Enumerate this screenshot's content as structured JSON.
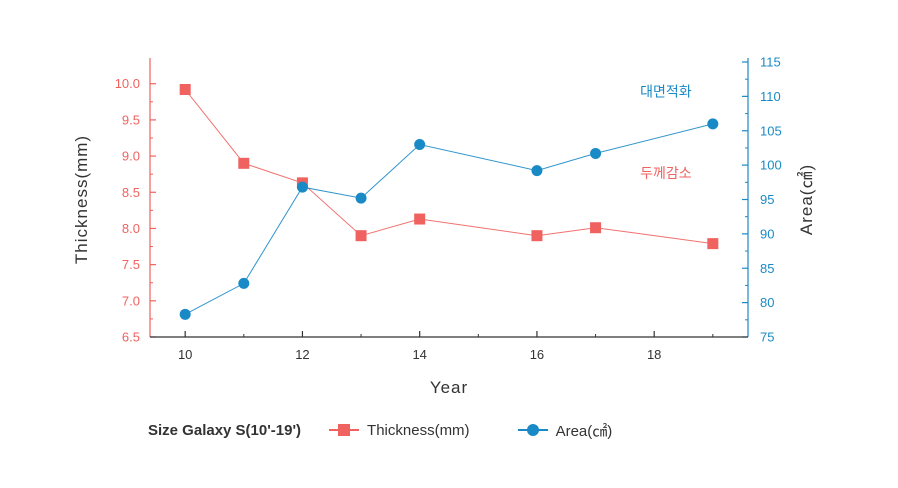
{
  "chart_data": {
    "type": "line",
    "x": [
      10,
      11,
      12,
      13,
      14,
      16,
      17,
      19
    ],
    "xlabel": "Year",
    "xlim": [
      9.4,
      19.6
    ],
    "xticks": [
      10,
      12,
      14,
      16,
      18
    ],
    "series": [
      {
        "name": "Thickness(mm)",
        "axis": "left",
        "marker": "square",
        "color": "#f0625f",
        "values": [
          9.92,
          8.9,
          8.63,
          7.9,
          8.13,
          7.9,
          8.01,
          7.79
        ]
      },
      {
        "name": "Area(㎠)",
        "axis": "right",
        "marker": "circle",
        "color": "#1a8ac6",
        "values": [
          78.3,
          82.8,
          96.8,
          95.2,
          103.0,
          99.2,
          101.7,
          106.0
        ]
      }
    ],
    "y_left": {
      "label": "Thickness(mm)",
      "lim": [
        6.5,
        10.3
      ],
      "ticks": [
        "6.5",
        "7.0",
        "7.5",
        "8.0",
        "8.5",
        "9.0",
        "9.5",
        "10.0"
      ]
    },
    "y_right": {
      "label": "Area(㎠)",
      "lim": [
        75,
        115
      ],
      "ticks": [
        "75",
        "80",
        "85",
        "90",
        "95",
        "100",
        "105",
        "110",
        "115"
      ]
    },
    "annotations": [
      {
        "text": "대면적화",
        "series": 1,
        "x": 18.2,
        "y": 110,
        "color": "#1a8ac6"
      },
      {
        "text": "두께감소",
        "series": 0,
        "x": 18.2,
        "y": 8.7,
        "color": "#f0625f"
      }
    ],
    "legend_title": "Size Galaxy S(10'-19')",
    "grid": false
  },
  "legend": {
    "title": "Size Galaxy S(10'-19')",
    "items": [
      "Thickness(mm)",
      "Area(㎠)"
    ]
  },
  "colors": {
    "left_axis": "#f0625f",
    "right_axis": "#1a8ac6",
    "bottom_axis": "#333333"
  }
}
